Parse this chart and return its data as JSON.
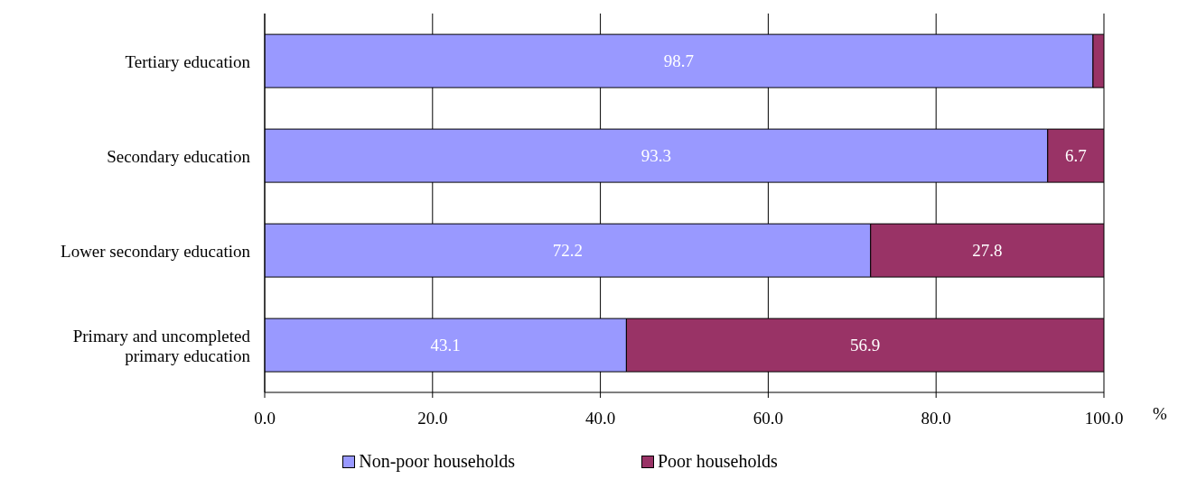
{
  "chart_data": {
    "type": "bar",
    "orientation": "horizontal",
    "stacked": true,
    "categories": [
      "Tertiary education",
      "Secondary education",
      "Lower secondary education",
      "Primary and uncompleted primary education"
    ],
    "series": [
      {
        "name": "Non-poor households",
        "color": "#9999ff",
        "values": [
          98.7,
          93.3,
          72.2,
          43.1
        ],
        "value_labels": [
          "98.7",
          "93.3",
          "72.2",
          "43.1"
        ]
      },
      {
        "name": "Poor households",
        "color": "#993366",
        "values": [
          1.3,
          6.7,
          27.8,
          56.9
        ],
        "value_labels": [
          null,
          "6.7",
          "27.8",
          "56.9"
        ]
      }
    ],
    "xlabel": "%",
    "xlim": [
      0,
      100
    ],
    "xticks": [
      {
        "value": 0,
        "label": "0.0"
      },
      {
        "value": 20,
        "label": "20.0"
      },
      {
        "value": 40,
        "label": "40.0"
      },
      {
        "value": 60,
        "label": "60.0"
      },
      {
        "value": 80,
        "label": "80.0"
      },
      {
        "value": 100,
        "label": "100.0"
      }
    ],
    "grid": "x",
    "legend": "bottom"
  }
}
